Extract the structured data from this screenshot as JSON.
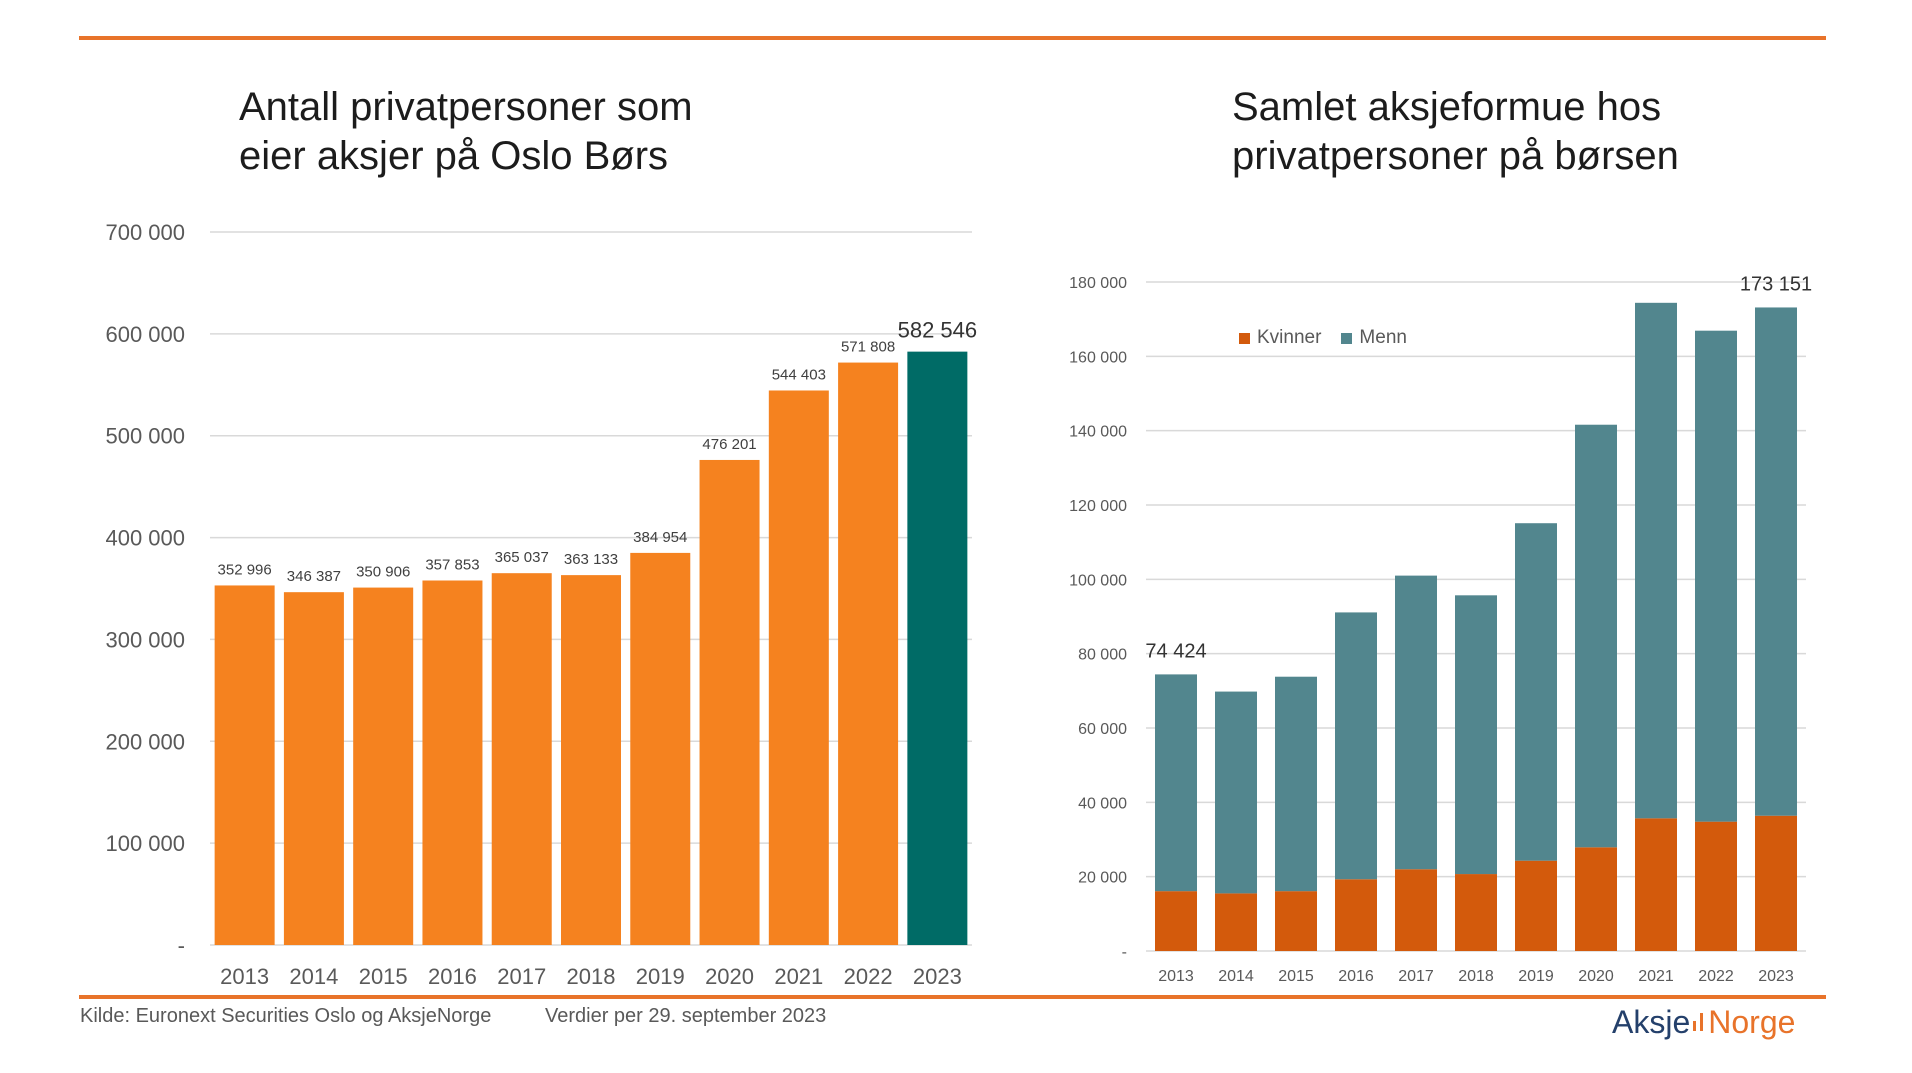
{
  "slide": {
    "accent_color": "#E8732A"
  },
  "chart_data": [
    {
      "type": "bar",
      "title_lines": [
        "Antall privatpersoner som",
        "eier aksjer på Oslo Børs"
      ],
      "categories": [
        "2013",
        "2014",
        "2015",
        "2016",
        "2017",
        "2018",
        "2019",
        "2020",
        "2021",
        "2022",
        "2023"
      ],
      "values": [
        352996,
        346387,
        350906,
        357853,
        365037,
        363133,
        384954,
        476201,
        544403,
        571808,
        582546
      ],
      "ylim": [
        0,
        700000
      ],
      "yticks": [
        0,
        100000,
        200000,
        300000,
        400000,
        500000,
        600000,
        700000
      ],
      "ytick_labels": [
        "-",
        "100 000",
        "200 000",
        "300 000",
        "400 000",
        "500 000",
        "600 000",
        "700 000"
      ],
      "value_labels": true,
      "grid": true,
      "bar_color": "#F5821F",
      "highlight": {
        "category": "2023",
        "color": "#006B66"
      }
    },
    {
      "type": "bar",
      "stacked": true,
      "title_lines": [
        "Samlet aksjeformue hos",
        "privatpersoner på børsen"
      ],
      "categories": [
        "2013",
        "2014",
        "2015",
        "2016",
        "2017",
        "2018",
        "2019",
        "2020",
        "2021",
        "2022",
        "2023"
      ],
      "series": [
        {
          "name": "Kvinner",
          "color": "#D35A0C",
          "values": [
            16100,
            15500,
            16100,
            19300,
            22000,
            20700,
            24300,
            27900,
            35700,
            34800,
            36400
          ]
        },
        {
          "name": "Menn",
          "color": "#52868E",
          "values": [
            58324,
            54300,
            57700,
            71800,
            79000,
            75000,
            90800,
            113700,
            138700,
            132100,
            136751
          ]
        }
      ],
      "ylim": [
        0,
        180000
      ],
      "yticks": [
        0,
        20000,
        40000,
        60000,
        80000,
        100000,
        120000,
        140000,
        160000,
        180000
      ],
      "ytick_labels": [
        "-",
        "20 000",
        "40 000",
        "60 000",
        "80 000",
        "100 000",
        "120 000",
        "140 000",
        "160 000",
        "180 000"
      ],
      "grid": true,
      "legend": "top-left",
      "annotations": [
        {
          "category": "2013",
          "text": "74 424"
        },
        {
          "category": "2023",
          "text": "173 151"
        }
      ]
    }
  ],
  "footer": {
    "source": "Kilde: Euronext Securities Oslo og AksjeNorge",
    "date_note": "Verdier per 29. september 2023",
    "logo": {
      "left": "Aksje",
      "right": "Norge",
      "left_color": "#24406B",
      "right_color": "#E8732A"
    }
  }
}
